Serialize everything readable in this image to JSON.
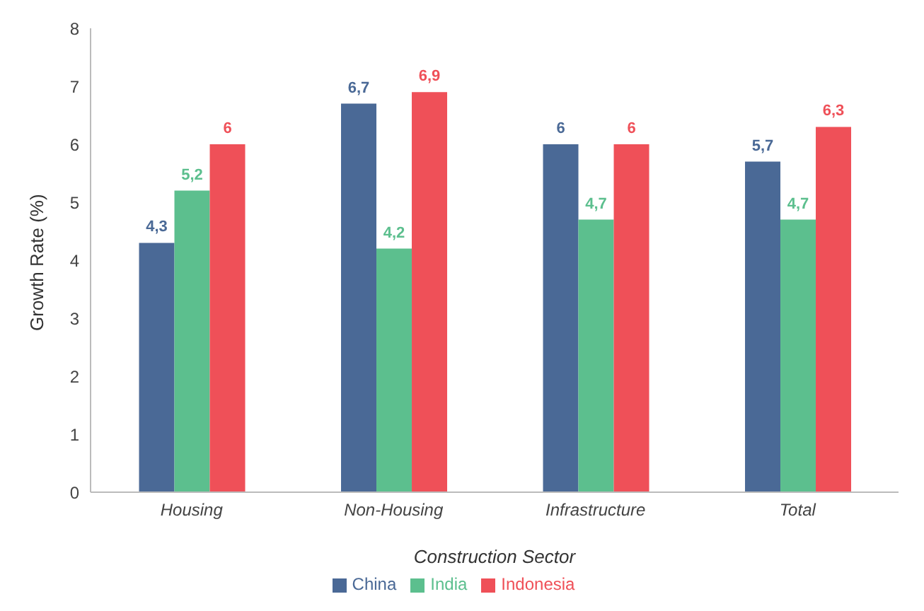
{
  "chart_data": {
    "type": "bar",
    "xlabel": "Construction Sector",
    "ylabel": "Growth Rate (%)",
    "categories": [
      "Housing",
      "Non-Housing",
      "Infrastructure",
      "Total"
    ],
    "series": [
      {
        "name": "China",
        "color": "#4a6996",
        "values": [
          4.3,
          6.7,
          6,
          5.7
        ],
        "value_labels": [
          "4,3",
          "6,7",
          "6",
          "5,7"
        ]
      },
      {
        "name": "India",
        "color": "#5cbf8e",
        "values": [
          5.2,
          4.2,
          4.7,
          4.7
        ],
        "value_labels": [
          "5,2",
          "4,2",
          "4,7",
          "4,7"
        ]
      },
      {
        "name": "Indonesia",
        "color": "#ef5058",
        "values": [
          6,
          6.9,
          6,
          6.3
        ],
        "value_labels": [
          "6",
          "6,9",
          "6",
          "6,3"
        ]
      }
    ],
    "ylim": [
      0,
      8
    ],
    "yticks": [
      0,
      1,
      2,
      3,
      4,
      5,
      6,
      7,
      8
    ],
    "grid": false,
    "legend": "bottom"
  }
}
